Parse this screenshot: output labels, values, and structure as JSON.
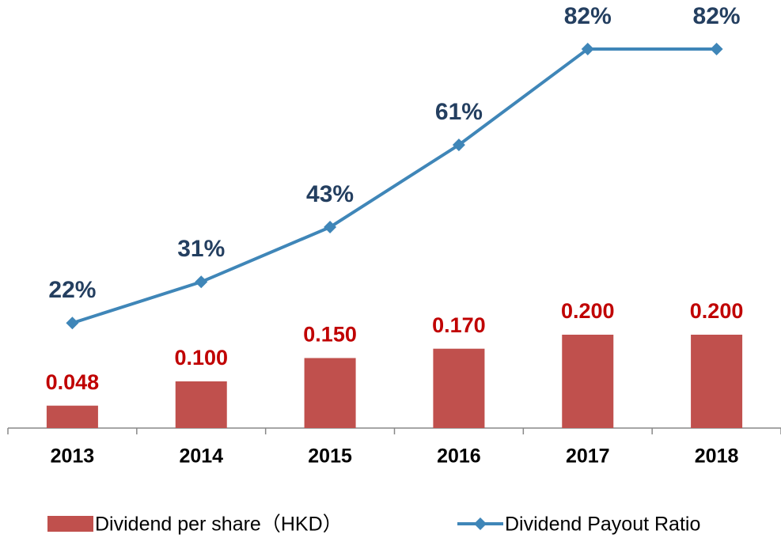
{
  "chart_data": {
    "type": "bar_line",
    "categories": [
      "2013",
      "2014",
      "2015",
      "2016",
      "2017",
      "2018"
    ],
    "series": [
      {
        "name": "Dividend per share（HKD）",
        "type": "bar",
        "color": "#c0504d",
        "label_color": "#c00000",
        "values": [
          0.048,
          0.1,
          0.15,
          0.17,
          0.2,
          0.2
        ],
        "value_labels": [
          "0.048",
          "0.100",
          "0.150",
          "0.170",
          "0.200",
          "0.200"
        ]
      },
      {
        "name": "Dividend Payout Ratio",
        "type": "line",
        "axis": "y2",
        "color": "#3f86b8",
        "label_color": "#243f60",
        "values": [
          22,
          31,
          43,
          61,
          82,
          82
        ],
        "value_labels": [
          "22%",
          "31%",
          "43%",
          "61%",
          "82%",
          "82%"
        ]
      }
    ],
    "ylim": [
      0,
      0.9
    ],
    "y2lim": [
      -1,
      91
    ]
  }
}
